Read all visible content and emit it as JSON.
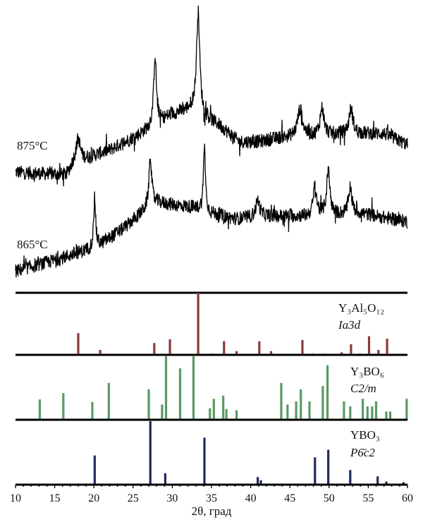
{
  "chart_data": [
    {
      "type": "line",
      "xlim": [
        10,
        60
      ],
      "ylim": [
        0,
        100
      ],
      "grid": false,
      "series": [
        {
          "name": "875°C",
          "color": "#000000",
          "baseline": [
            [
              10,
              40
            ],
            [
              16.5,
              39
            ],
            [
              17.5,
              44
            ],
            [
              19,
              45
            ],
            [
              22,
              48
            ],
            [
              26,
              54
            ],
            [
              27.5,
              57
            ],
            [
              30,
              61
            ],
            [
              32.5,
              63
            ],
            [
              34,
              60
            ],
            [
              36,
              57
            ],
            [
              38.5,
              51
            ],
            [
              41,
              51
            ],
            [
              44,
              52.5
            ],
            [
              48,
              53
            ],
            [
              52,
              54
            ],
            [
              57,
              54
            ],
            [
              60,
              50
            ]
          ],
          "peaks": [
            {
              "position": 18.0,
              "height": 8,
              "width": 0.3
            },
            {
              "position": 27.8,
              "height": 25,
              "width": 0.2
            },
            {
              "position": 33.3,
              "height": 37,
              "width": 0.25
            },
            {
              "position": 46.3,
              "height": 10,
              "width": 0.4
            },
            {
              "position": 49.1,
              "height": 10,
              "width": 0.3
            },
            {
              "position": 52.8,
              "height": 9,
              "width": 0.3
            }
          ]
        },
        {
          "name": "865°C",
          "color": "#000000",
          "baseline": [
            [
              10,
              4
            ],
            [
              15,
              8
            ],
            [
              19.5,
              12
            ],
            [
              21,
              14
            ],
            [
              24,
              20
            ],
            [
              26.8,
              27
            ],
            [
              28,
              29
            ],
            [
              33,
              27
            ],
            [
              35,
              25
            ],
            [
              38,
              23
            ],
            [
              42,
              24
            ],
            [
              47,
              24
            ],
            [
              54,
              25
            ],
            [
              60,
              22
            ]
          ],
          "peaks": [
            {
              "position": 20.1,
              "height": 18,
              "width": 0.15
            },
            {
              "position": 27.2,
              "height": 18,
              "width": 0.2
            },
            {
              "position": 34.1,
              "height": 24,
              "width": 0.15
            },
            {
              "position": 40.9,
              "height": 6,
              "width": 0.3
            },
            {
              "position": 48.2,
              "height": 11,
              "width": 0.25
            },
            {
              "position": 49.9,
              "height": 16,
              "width": 0.25
            },
            {
              "position": 52.7,
              "height": 10,
              "width": 0.25
            }
          ]
        }
      ]
    },
    {
      "type": "bar",
      "subtype": "stick-pattern",
      "xlabel": "2θ, град",
      "xlim": [
        10,
        60
      ],
      "xticks": [
        "10",
        "15",
        "20",
        "25",
        "30",
        "35",
        "40",
        "45",
        "50",
        "55",
        "60"
      ],
      "phases": [
        {
          "name": "Y₃Al₅O₁₂",
          "space_group": "Ia3d",
          "color": "#8b3a3a",
          "lines": [
            [
              18.0,
              0.35
            ],
            [
              20.8,
              0.08
            ],
            [
              27.7,
              0.19
            ],
            [
              29.7,
              0.25
            ],
            [
              33.3,
              1.0
            ],
            [
              35.0,
              0.02
            ],
            [
              36.6,
              0.22
            ],
            [
              38.2,
              0.06
            ],
            [
              41.1,
              0.22
            ],
            [
              42.6,
              0.06
            ],
            [
              46.6,
              0.24
            ],
            [
              47.9,
              0.02
            ],
            [
              49.2,
              0.02
            ],
            [
              51.6,
              0.04
            ],
            [
              52.8,
              0.17
            ],
            [
              53.9,
              0.02
            ],
            [
              55.1,
              0.3
            ],
            [
              56.3,
              0.08
            ],
            [
              57.4,
              0.26
            ]
          ]
        },
        {
          "name": "Y₃BO₆",
          "space_group": "C2/m",
          "color": "#5a9a64",
          "lines": [
            [
              13.1,
              0.32
            ],
            [
              16.1,
              0.42
            ],
            [
              19.8,
              0.28
            ],
            [
              21.9,
              0.58
            ],
            [
              27.0,
              0.48
            ],
            [
              28.7,
              0.24
            ],
            [
              29.2,
              1.0
            ],
            [
              31.0,
              0.81
            ],
            [
              32.7,
              1.0
            ],
            [
              34.8,
              0.18
            ],
            [
              35.3,
              0.33
            ],
            [
              36.5,
              0.38
            ],
            [
              36.9,
              0.17
            ],
            [
              38.2,
              0.15
            ],
            [
              43.9,
              0.58
            ],
            [
              44.7,
              0.24
            ],
            [
              45.8,
              0.29
            ],
            [
              46.4,
              0.48
            ],
            [
              47.5,
              0.29
            ],
            [
              49.2,
              0.53
            ],
            [
              49.8,
              0.86
            ],
            [
              51.9,
              0.29
            ],
            [
              52.7,
              0.21
            ],
            [
              54.3,
              0.33
            ],
            [
              54.9,
              0.21
            ],
            [
              55.5,
              0.21
            ],
            [
              56.0,
              0.29
            ],
            [
              57.3,
              0.13
            ],
            [
              57.8,
              0.13
            ],
            [
              59.9,
              0.33
            ]
          ]
        },
        {
          "name": "YBO₃",
          "space_group": "P6̄c2",
          "color": "#1f2a5e",
          "lines": [
            [
              20.1,
              0.46
            ],
            [
              27.2,
              1.0
            ],
            [
              29.1,
              0.18
            ],
            [
              34.1,
              0.74
            ],
            [
              40.9,
              0.12
            ],
            [
              41.3,
              0.07
            ],
            [
              48.2,
              0.43
            ],
            [
              49.9,
              0.55
            ],
            [
              52.7,
              0.23
            ],
            [
              56.2,
              0.13
            ],
            [
              57.3,
              0.05
            ],
            [
              59.5,
              0.04
            ]
          ]
        }
      ]
    }
  ]
}
